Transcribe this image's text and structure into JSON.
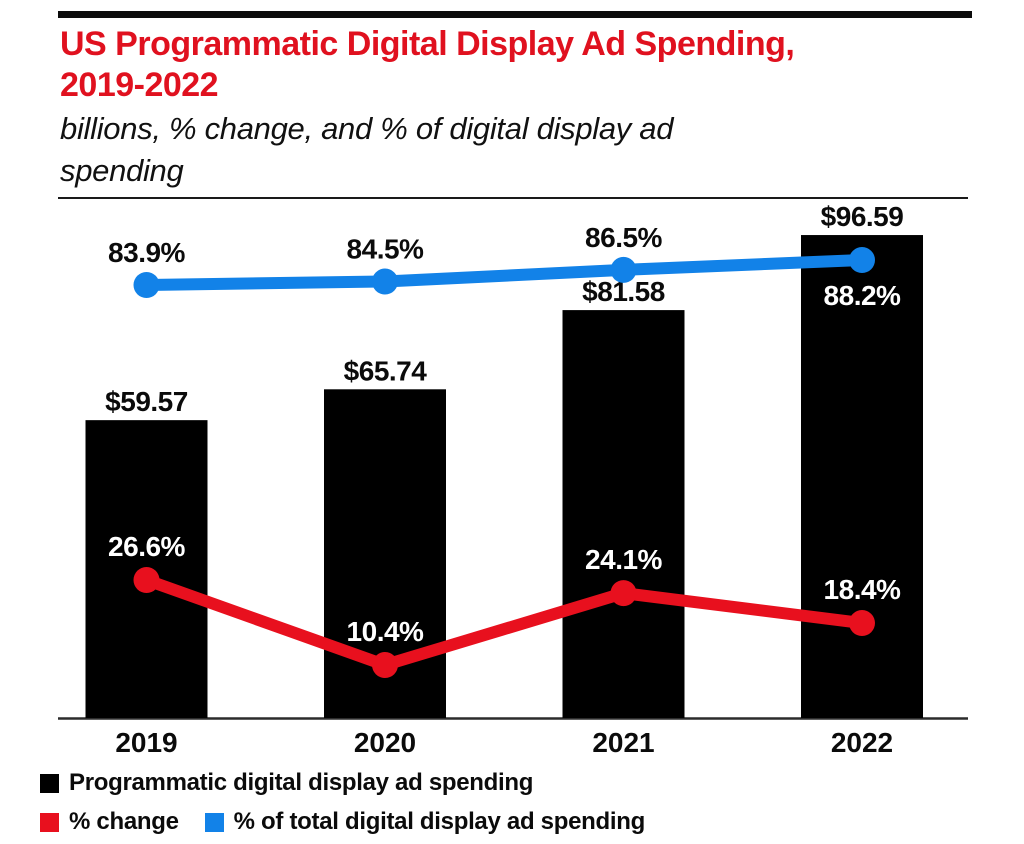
{
  "header": {
    "title_line1": "US Programmatic Digital Display Ad Spending,",
    "title_line2": "2019-2022",
    "subtitle_line1": "billions, % change, and % of digital display ad",
    "subtitle_line2": "spending",
    "title_color": "#e0111f"
  },
  "chart_data": {
    "type": "bar",
    "title": "US Programmatic Digital Display Ad Spending, 2019-2022",
    "subtitle": "billions, % change, and % of digital display ad spending",
    "categories": [
      "2019",
      "2020",
      "2021",
      "2022"
    ],
    "series": [
      {
        "name": "Programmatic digital display ad spending",
        "type": "bar",
        "unit": "USD billions",
        "color": "#000000",
        "values": [
          59.57,
          65.74,
          81.58,
          96.59
        ],
        "labels": [
          "$59.57",
          "$65.74",
          "$81.58",
          "$96.59"
        ]
      },
      {
        "name": "% change",
        "type": "line",
        "unit": "percent",
        "color": "#e8101e",
        "values": [
          26.6,
          10.4,
          24.1,
          18.4
        ],
        "labels": [
          "26.6%",
          "10.4%",
          "24.1%",
          "18.4%"
        ]
      },
      {
        "name": "% of total digital display ad spending",
        "type": "line",
        "unit": "percent",
        "color": "#1282e8",
        "values": [
          83.9,
          84.5,
          86.5,
          88.2
        ],
        "labels": [
          "83.9%",
          "84.5%",
          "86.5%",
          "88.2%"
        ]
      }
    ],
    "legend_position": "bottom",
    "grid": false,
    "xlabel": "",
    "ylabel": ""
  },
  "legend": {
    "items": [
      {
        "label": "Programmatic digital display ad spending",
        "color": "#000000"
      },
      {
        "label": "% change",
        "color": "#e8101e"
      },
      {
        "label": "% of total digital display ad spending",
        "color": "#1282e8"
      }
    ]
  }
}
